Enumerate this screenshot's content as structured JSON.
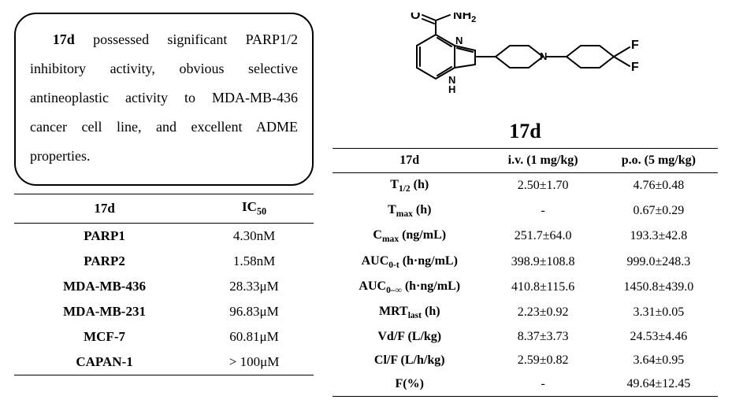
{
  "summary": {
    "text_html": "<span class=\"bold-lead\">17d</span> possessed significant PARP1/2 inhibitory activity, obvious selective antineoplastic activity to MDA-MB-436 cancer cell line, and  excellent ADME properties."
  },
  "ic50_table": {
    "type": "table",
    "background_color": "#ffffff",
    "border_color": "#000000",
    "font_size": 17,
    "columns": [
      {
        "label_html": "17d"
      },
      {
        "label_html": "IC<span class=\"sub\">50</span>"
      }
    ],
    "rows": [
      [
        "PARP1",
        "4.30nM"
      ],
      [
        "PARP2",
        "1.58nM"
      ],
      [
        "MDA-MB-436",
        "28.33μM"
      ],
      [
        "MDA-MB-231",
        "96.83μM"
      ],
      [
        "MCF-7",
        "60.81μM"
      ],
      [
        "CAPAN-1",
        "> 100μM"
      ]
    ]
  },
  "compound_label": "17d",
  "pk_table": {
    "type": "table",
    "background_color": "#ffffff",
    "border_color": "#000000",
    "font_size": 16,
    "columns": [
      {
        "label_html": "17d"
      },
      {
        "label_html": "i.v. (1 mg/kg)"
      },
      {
        "label_html": "p.o. (5 mg/kg)"
      }
    ],
    "rows": [
      {
        "param_html": "T<span class=\"sub\">1/2</span> (h)",
        "iv": "2.50±1.70",
        "po": "4.76±0.48"
      },
      {
        "param_html": "T<span class=\"sub\">max</span> (h)",
        "iv": "-",
        "po": "0.67±0.29"
      },
      {
        "param_html": "C<span class=\"sub\">max</span> (ng/mL)",
        "iv": "251.7±64.0",
        "po": "193.3±42.8"
      },
      {
        "param_html": "AUC<span class=\"sub\">0-t</span> (h·ng/mL)",
        "iv": "398.9±108.8",
        "po": "999.0±248.3"
      },
      {
        "param_html": "AUC<span class=\"sub\">0–∞</span> (h·ng/mL)",
        "iv": "410.8±115.6",
        "po": "1450.8±439.0"
      },
      {
        "param_html": "MRT<span class=\"sub\">last</span> (h)",
        "iv": "2.23±0.92",
        "po": "3.31±0.05"
      },
      {
        "param_html": "Vd/F (L/kg)",
        "iv": "8.37±3.73",
        "po": "24.53±4.46"
      },
      {
        "param_html": "Cl/F (L/h/kg)",
        "iv": "2.59±0.82",
        "po": "3.64±0.95"
      },
      {
        "param_html": "F(%)",
        "iv": "-",
        "po": "49.64±12.45"
      }
    ]
  },
  "structure": {
    "labels": {
      "O": "O",
      "NH2_N": "N",
      "NH2_H2": "H",
      "NH2_2": "2",
      "N_ring": "N",
      "NH_ring_N": "N",
      "NH_ring_H": "H",
      "N_pip": "N",
      "F1": "F",
      "F2": "F"
    }
  }
}
